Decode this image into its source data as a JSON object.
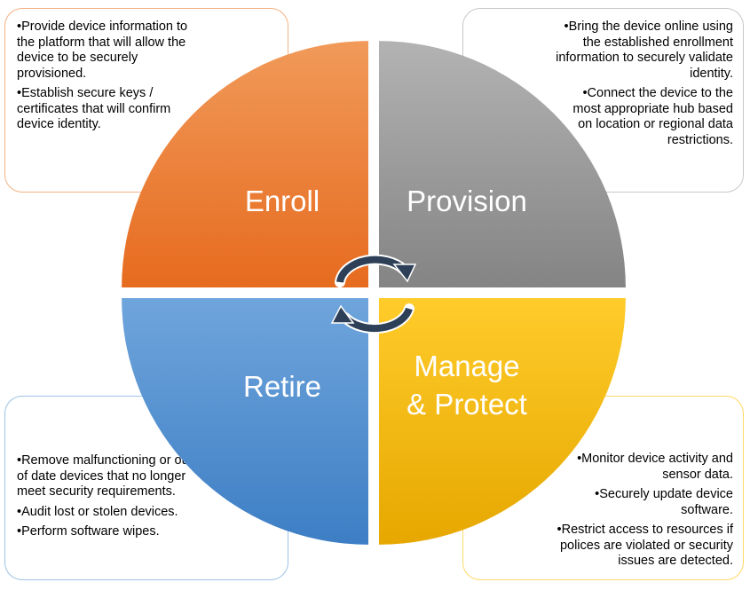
{
  "quadrants": {
    "enroll": {
      "label": "Enroll"
    },
    "provision": {
      "label": "Provision"
    },
    "retire": {
      "label": "Retire"
    },
    "manage": {
      "label_line1": "Manage",
      "label_line2": "& Protect"
    }
  },
  "boxes": {
    "enroll": {
      "items": [
        "Provide device information to the platform that will allow the device to be securely provisioned.",
        "Establish secure keys / certificates that will confirm device identity."
      ]
    },
    "provision": {
      "items": [
        "Bring the device online using the established enrollment information to securely validate identity.",
        "Connect the device to the most appropriate hub based on location or regional data restrictions."
      ]
    },
    "retire": {
      "items": [
        "Remove malfunctioning or out of date devices that no longer meet security requirements.",
        "Audit lost or stolen devices.",
        "Perform software wipes."
      ]
    },
    "manage": {
      "items": [
        "Monitor device activity and sensor data.",
        "Securely update device software.",
        "Restrict access to resources if polices are violated or security issues are detected."
      ]
    }
  },
  "colors": {
    "enroll": [
      "#f19a5a",
      "#e66b1f"
    ],
    "provision": [
      "#b3b3b3",
      "#848484"
    ],
    "retire": [
      "#6fa5dc",
      "#3d7ec4"
    ],
    "manage": [
      "#ffcc2b",
      "#e6a700"
    ],
    "arrow": "#2e4057"
  }
}
